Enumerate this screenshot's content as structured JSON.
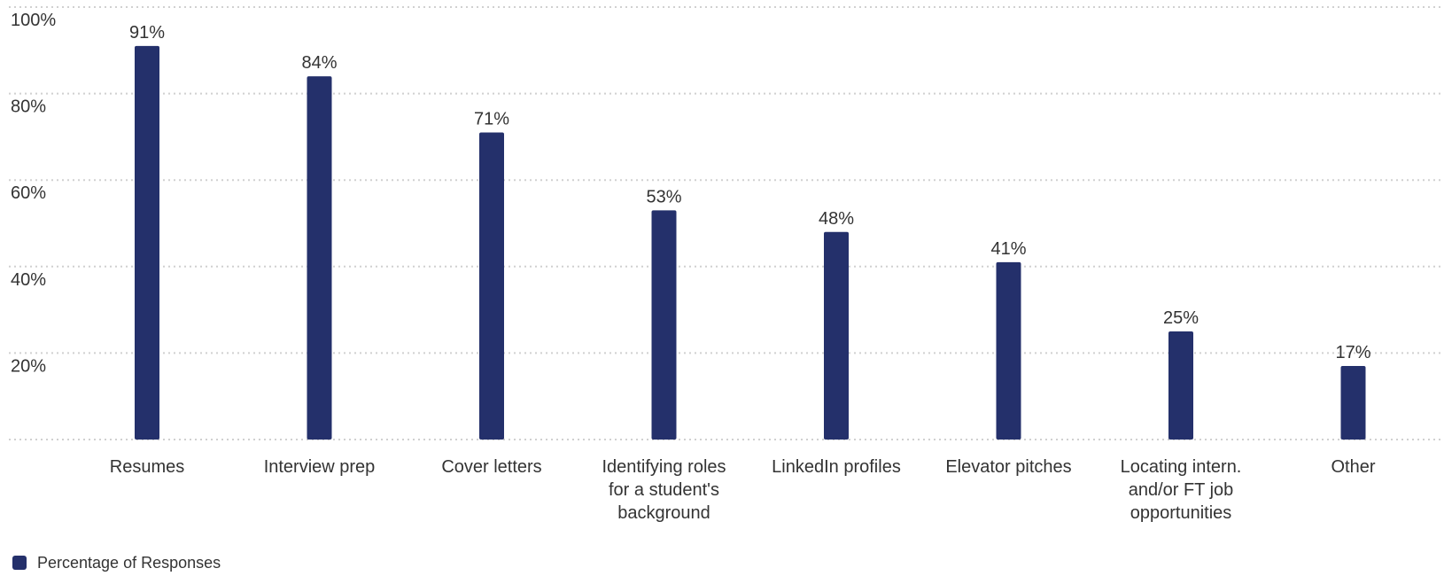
{
  "chart_data": {
    "type": "bar",
    "categories": [
      "Resumes",
      "Interview prep",
      "Cover letters",
      "Identifying roles for a student's background",
      "LinkedIn profiles",
      "Elevator pitches",
      "Locating intern. and/or FT job opportunities",
      "Other"
    ],
    "category_lines": [
      [
        "Resumes"
      ],
      [
        "Interview prep"
      ],
      [
        "Cover letters"
      ],
      [
        "Identifying roles",
        "for a student's",
        "background"
      ],
      [
        "LinkedIn profiles"
      ],
      [
        "Elevator pitches"
      ],
      [
        "Locating intern.",
        "and/or FT job",
        "opportunities"
      ],
      [
        "Other"
      ]
    ],
    "series": [
      {
        "name": "Percentage of Responses",
        "values": [
          91,
          84,
          71,
          53,
          48,
          41,
          25,
          17
        ],
        "data_labels": [
          "91%",
          "84%",
          "71%",
          "53%",
          "48%",
          "41%",
          "25%",
          "17%"
        ]
      }
    ],
    "ylim": [
      0,
      100
    ],
    "yticks": [
      20,
      40,
      60,
      80,
      100
    ],
    "ytick_labels": [
      "20%",
      "40%",
      "60%",
      "80%",
      "100%"
    ],
    "title": "",
    "xlabel": "",
    "ylabel": "",
    "grid": true,
    "legend_position": "bottom-left",
    "colors": {
      "bar": "#24306b",
      "grid": "#d0d0d0",
      "text": "#333333"
    }
  }
}
